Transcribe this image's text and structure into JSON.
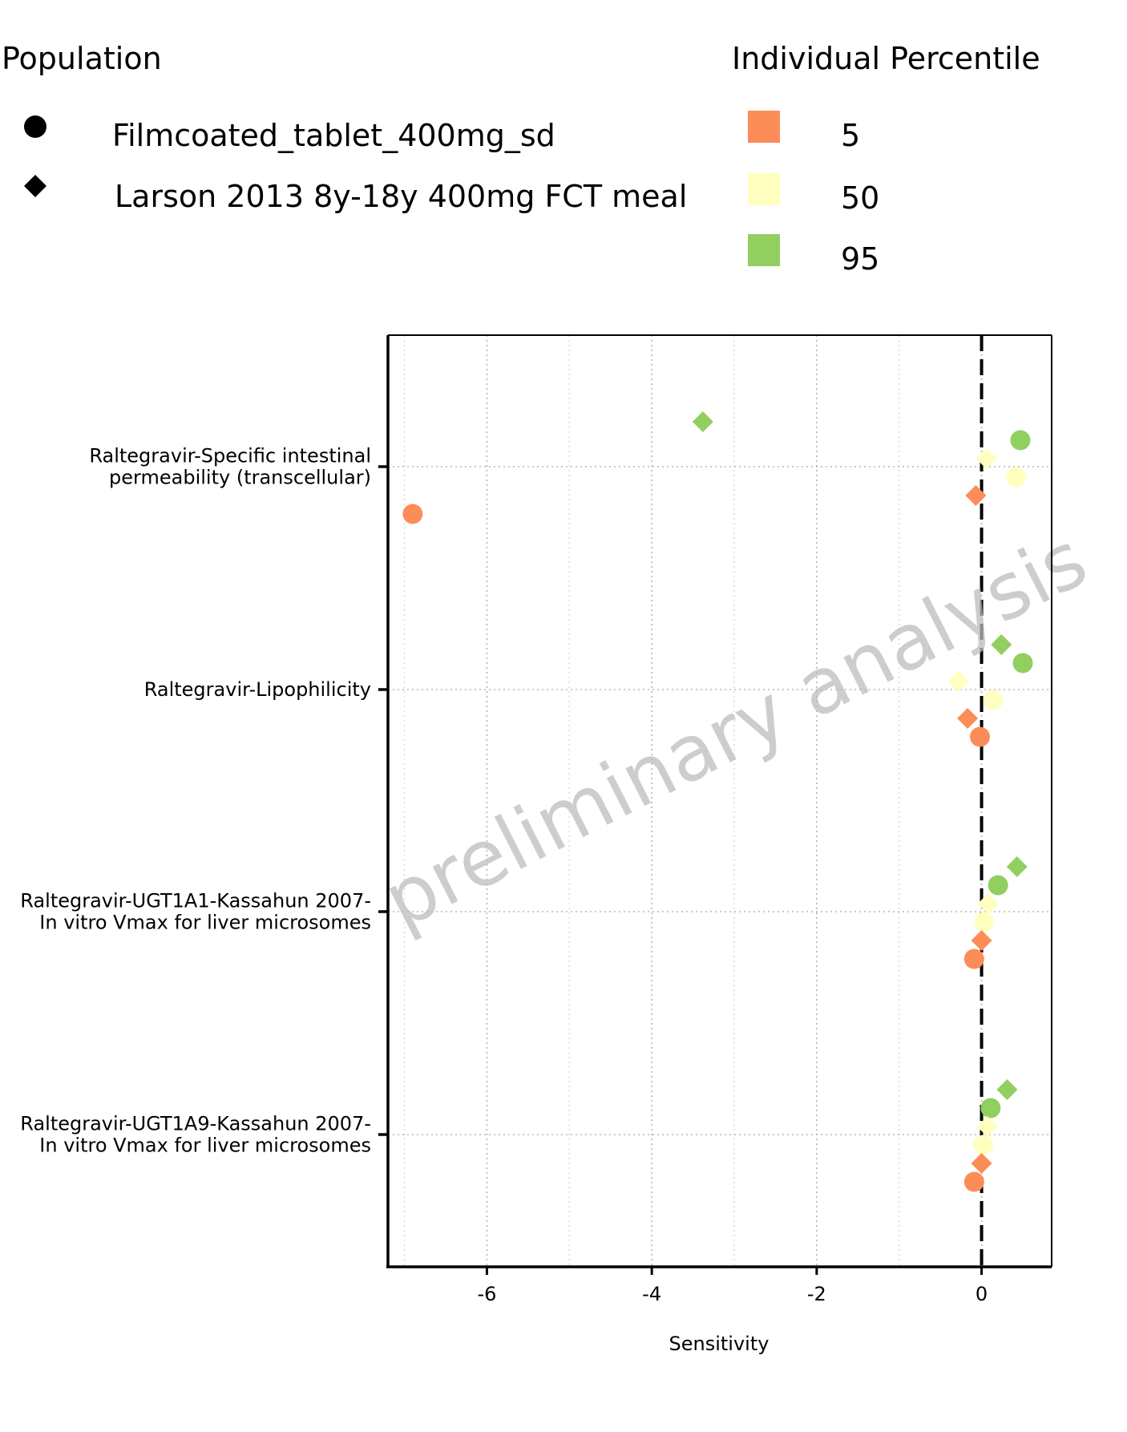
{
  "chart_data": {
    "type": "scatter",
    "title": "",
    "xlabel": "Sensitivity",
    "ylabel": "",
    "xlim": [
      -7.2,
      0.85
    ],
    "xticks": [
      -6,
      -4,
      -2,
      0
    ],
    "xtick_labels": [
      "-6",
      "-4",
      "-2",
      "0"
    ],
    "grid": true,
    "reference_line": {
      "x": 0,
      "style": "dashed"
    },
    "watermark": "preliminary analysis",
    "categories": [
      "Raltegravir-Specific intestinal\npermeability (transcellular)",
      "Raltegravir-Lipophilicity",
      "Raltegravir-UGT1A1-Kassahun 2007-\nIn vitro Vmax for liver microsomes",
      "Raltegravir-UGT1A9-Kassahun 2007-\nIn vitro Vmax for liver microsomes"
    ],
    "shape_legend": {
      "title": "Population",
      "entries": [
        {
          "label": "Filmcoated_tablet_400mg_sd",
          "shape": "circle"
        },
        {
          "label": "Larson 2013 8y-18y 400mg FCT meal",
          "shape": "diamond"
        }
      ]
    },
    "color_legend": {
      "title": "Individual Percentile",
      "entries": [
        {
          "label": "5",
          "color": "#fc8d59"
        },
        {
          "label": "50",
          "color": "#ffffbf"
        },
        {
          "label": "95",
          "color": "#91cf60"
        }
      ]
    },
    "points": [
      {
        "category": 0,
        "population": 1,
        "percentile": "95",
        "x": -3.38
      },
      {
        "category": 0,
        "population": 0,
        "percentile": "95",
        "x": 0.47
      },
      {
        "category": 0,
        "population": 1,
        "percentile": "50",
        "x": 0.06
      },
      {
        "category": 0,
        "population": 0,
        "percentile": "50",
        "x": 0.42
      },
      {
        "category": 0,
        "population": 1,
        "percentile": "5",
        "x": -0.07
      },
      {
        "category": 0,
        "population": 0,
        "percentile": "5",
        "x": -6.9
      },
      {
        "category": 1,
        "population": 1,
        "percentile": "95",
        "x": 0.24
      },
      {
        "category": 1,
        "population": 0,
        "percentile": "95",
        "x": 0.5
      },
      {
        "category": 1,
        "population": 1,
        "percentile": "50",
        "x": -0.28
      },
      {
        "category": 1,
        "population": 0,
        "percentile": "50",
        "x": 0.14
      },
      {
        "category": 1,
        "population": 1,
        "percentile": "5",
        "x": -0.17
      },
      {
        "category": 1,
        "population": 0,
        "percentile": "5",
        "x": -0.02
      },
      {
        "category": 2,
        "population": 1,
        "percentile": "95",
        "x": 0.43
      },
      {
        "category": 2,
        "population": 0,
        "percentile": "95",
        "x": 0.2
      },
      {
        "category": 2,
        "population": 1,
        "percentile": "50",
        "x": 0.08
      },
      {
        "category": 2,
        "population": 0,
        "percentile": "50",
        "x": 0.03
      },
      {
        "category": 2,
        "population": 1,
        "percentile": "5",
        "x": 0.0
      },
      {
        "category": 2,
        "population": 0,
        "percentile": "5",
        "x": -0.09
      },
      {
        "category": 3,
        "population": 1,
        "percentile": "95",
        "x": 0.31
      },
      {
        "category": 3,
        "population": 0,
        "percentile": "95",
        "x": 0.11
      },
      {
        "category": 3,
        "population": 1,
        "percentile": "50",
        "x": 0.07
      },
      {
        "category": 3,
        "population": 0,
        "percentile": "50",
        "x": 0.02
      },
      {
        "category": 3,
        "population": 1,
        "percentile": "5",
        "x": 0.0
      },
      {
        "category": 3,
        "population": 0,
        "percentile": "5",
        "x": -0.09
      }
    ]
  }
}
